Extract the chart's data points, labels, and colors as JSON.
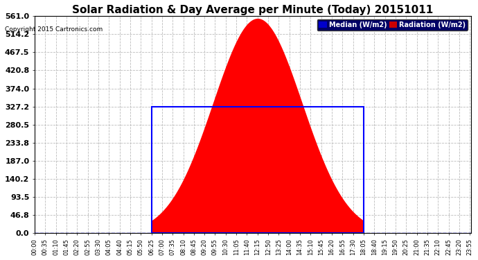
{
  "title": "Solar Radiation & Day Average per Minute (Today) 20151011",
  "copyright": "Copyright 2015 Cartronics.com",
  "yticks": [
    0.0,
    46.8,
    93.5,
    140.2,
    187.0,
    233.8,
    280.5,
    327.2,
    374.0,
    420.8,
    467.5,
    514.2,
    561.0
  ],
  "ymax": 561.0,
  "ymin": 0.0,
  "median_value": 327.2,
  "peak_value": 555.0,
  "radiation_color": "#ff0000",
  "median_color": "#0000ff",
  "background_color": "#ffffff",
  "grid_color": "#bbbbbb",
  "box_color": "#0000ff",
  "title_fontsize": 11,
  "legend_median_bg": "#0000cc",
  "legend_radiation_bg": "#cc0000",
  "sunrise_minute": 385,
  "sunset_minute": 1085,
  "peak_minute": 730,
  "total_minutes": 1440,
  "tick_interval_minutes": 35,
  "figwidth": 6.9,
  "figheight": 3.75
}
